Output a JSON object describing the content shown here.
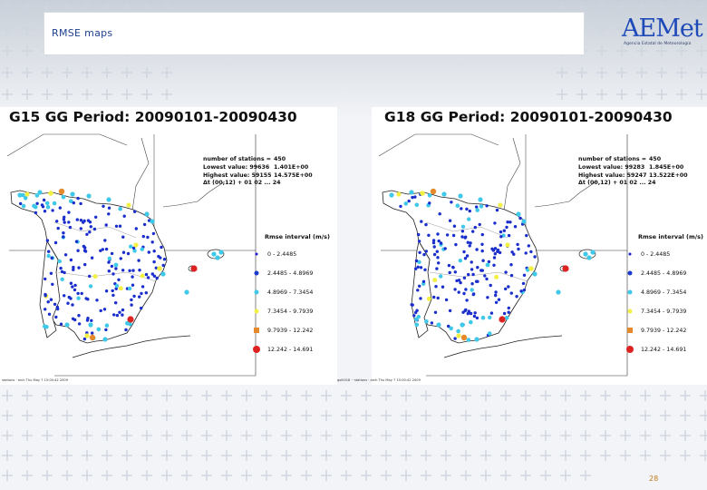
{
  "slide": {
    "title": "RMSE maps",
    "page_number": "28"
  },
  "logo": {
    "name": "AEMet",
    "subtitle": "Agencia Estatal de Meteorología"
  },
  "panels": [
    {
      "title": "G15  GG  Period: 20090101-20090430",
      "stats": [
        {
          "label": "number of stations =",
          "value": "450"
        },
        {
          "label": "Lowest value:  99636",
          "value": "1.401E+00"
        },
        {
          "label": "Highest value:  59155",
          "value": "14.575E+00"
        },
        {
          "label": "Δt (00,12) + 01 02 ... 24",
          "value": ""
        }
      ],
      "footer": "stations · arch Thu May 7 15:00:42 2009"
    },
    {
      "title": "G18  GG  Period: 20090101-20090430",
      "stats": [
        {
          "label": "number of stations =",
          "value": "450"
        },
        {
          "label": "Lowest value:  99283",
          "value": "1.845E+00"
        },
        {
          "label": "Highest value:  59247",
          "value": "13.522E+00"
        },
        {
          "label": "Δt (00,12) + 01 02 ... 24",
          "value": ""
        }
      ],
      "footer": "gsl0018 ·· stations · arch Thu May 7 15:00:42 2009"
    }
  ],
  "legend": {
    "title": "Rmse interval (m/s)",
    "classes": [
      {
        "label": "0 - 2.4485",
        "color": "#1a1acc",
        "shape": "dot-small"
      },
      {
        "label": "2.4485 - 4.8969",
        "color": "#1a3acc",
        "shape": "dot"
      },
      {
        "label": "4.8969 - 7.3454",
        "color": "#3fc8e8",
        "shape": "dot"
      },
      {
        "label": "7.3454 - 9.7939",
        "color": "#f2f044",
        "shape": "dot"
      },
      {
        "label": "9.7939 - 12.242",
        "color": "#e48a2a",
        "shape": "square"
      },
      {
        "label": "12.242 - 14.691",
        "color": "#dd2222",
        "shape": "dot-large"
      }
    ]
  }
}
